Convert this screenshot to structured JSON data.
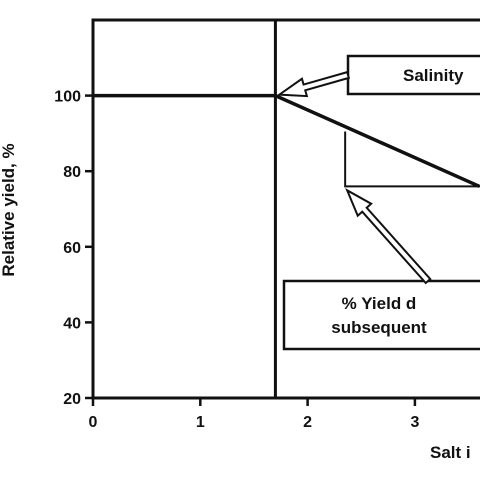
{
  "chart_data": {
    "type": "line",
    "title": "",
    "xlabel": "Salt i",
    "ylabel": "Relative yield, %",
    "xlim": [
      0,
      3.6
    ],
    "ylim": [
      20,
      120
    ],
    "x_ticks": [
      "0",
      "1",
      "2",
      "3"
    ],
    "y_ticks": [
      "20",
      "40",
      "60",
      "80",
      "100"
    ],
    "grid": false,
    "series": [
      {
        "x": [
          0,
          1.7,
          3.6
        ],
        "y": [
          100,
          100,
          76
        ]
      }
    ],
    "threshold_x": 1.7,
    "slope_reference": {
      "x_start": 2.35,
      "y_top": 90.5,
      "y_bottom": 76
    },
    "annotations": [
      {
        "lines": [
          "Salinity"
        ]
      },
      {
        "lines": [
          "% Yield d",
          "subsequent"
        ]
      }
    ]
  }
}
